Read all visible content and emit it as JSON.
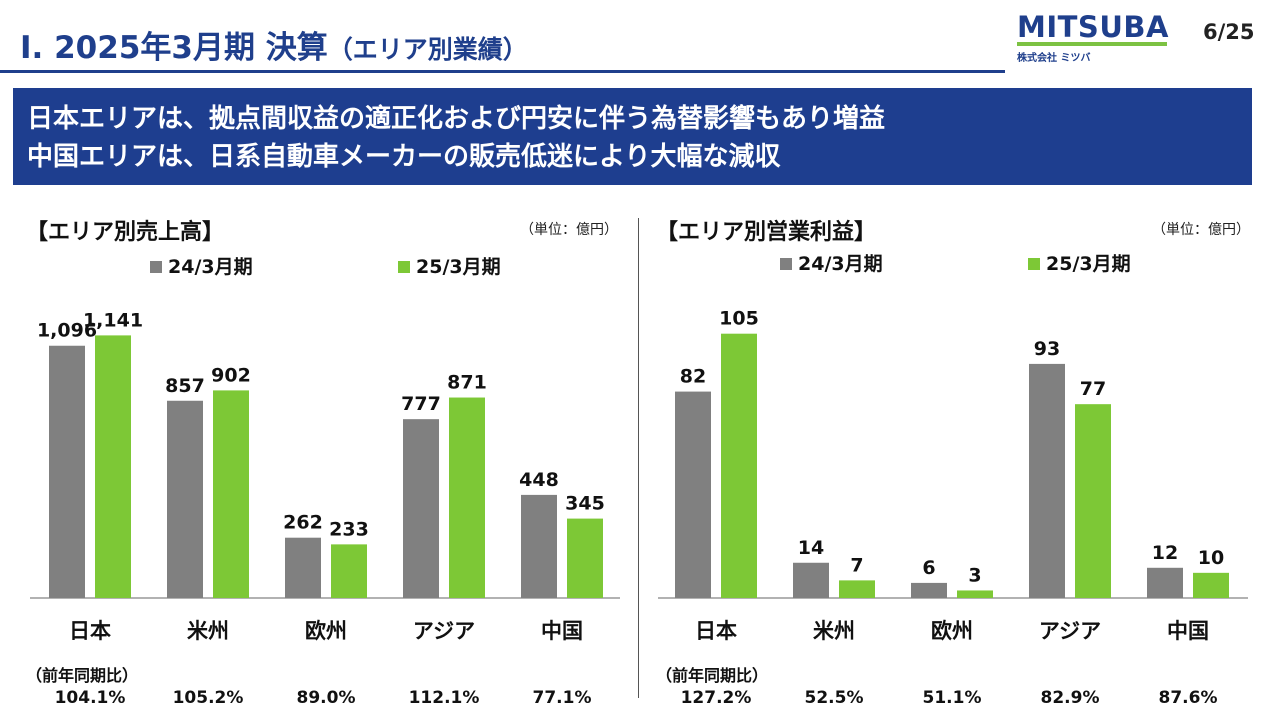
{
  "header": {
    "title_main": "Ⅰ. 2025年3月期 決算",
    "title_sub": "（エリア別業績）",
    "logo_text": "MITSUBA",
    "logo_sub": "株式会社 ミツバ",
    "page_number": "6/25"
  },
  "banner": {
    "line1": "日本エリアは、拠点間収益の適正化および円安に伴う為替影響もあり増益",
    "line2": "中国エリアは、日系自動車メーカーの販売低迷により大幅な減収"
  },
  "colors": {
    "prior": "#808080",
    "current": "#7dc836",
    "brand": "#1f3f8c"
  },
  "yoy_label": "（前年同期比）",
  "chart_data": [
    {
      "type": "bar",
      "title": "【エリア別売上高】",
      "unit": "（単位：億円）",
      "categories": [
        "日本",
        "米州",
        "欧州",
        "アジア",
        "中国"
      ],
      "series": [
        {
          "name": "24/3月期",
          "values": [
            1096,
            857,
            262,
            777,
            448
          ],
          "labels": [
            "1,096",
            "857",
            "262",
            "777",
            "448"
          ]
        },
        {
          "name": "25/3月期",
          "values": [
            1141,
            902,
            233,
            871,
            345
          ],
          "labels": [
            "1,141",
            "902",
            "233",
            "871",
            "345"
          ]
        }
      ],
      "yoy": [
        "104.1%",
        "105.2%",
        "89.0%",
        "112.1%",
        "77.1%"
      ],
      "ylim": [
        0,
        1260
      ]
    },
    {
      "type": "bar",
      "title": "【エリア別営業利益】",
      "unit": "（単位：億円）",
      "categories": [
        "日本",
        "米州",
        "欧州",
        "アジア",
        "中国"
      ],
      "series": [
        {
          "name": "24/3月期",
          "values": [
            82,
            14,
            6,
            93,
            12
          ],
          "labels": [
            "82",
            "14",
            "6",
            "93",
            "12"
          ]
        },
        {
          "name": "25/3月期",
          "values": [
            105,
            7,
            3,
            77,
            10
          ],
          "labels": [
            "105",
            "7",
            "3",
            "77",
            "10"
          ]
        }
      ],
      "yoy": [
        "127.2%",
        "52.5%",
        "51.1%",
        "82.9%",
        "87.6%"
      ],
      "ylim": [
        0,
        116
      ]
    }
  ]
}
